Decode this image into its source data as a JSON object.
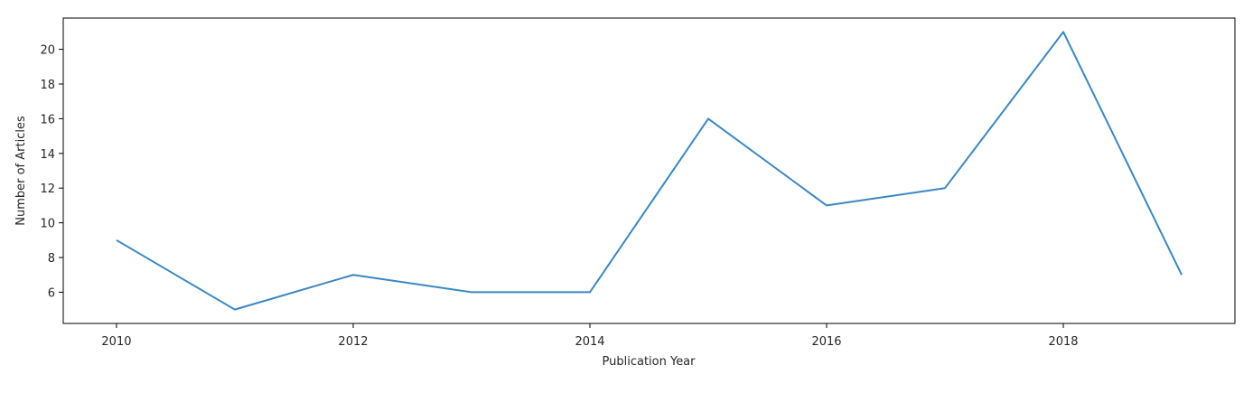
{
  "chart_data": {
    "type": "line",
    "title": "",
    "xlabel": "Publication Year",
    "ylabel": "Number of Articles",
    "x": [
      2010,
      2011,
      2012,
      2013,
      2014,
      2015,
      2016,
      2017,
      2018,
      2019
    ],
    "series": [
      {
        "values": [
          9,
          5,
          7,
          6,
          6,
          16,
          11,
          12,
          21,
          7
        ],
        "color": "#3a87c3"
      }
    ],
    "xlim": [
      2009.55,
      2019.45
    ],
    "ylim": [
      4.2,
      21.8
    ],
    "xticks": [
      2010,
      2012,
      2014,
      2016,
      2018
    ],
    "yticks": [
      6,
      8,
      10,
      12,
      14,
      16,
      18,
      20
    ],
    "grid": false,
    "legend": "none"
  }
}
